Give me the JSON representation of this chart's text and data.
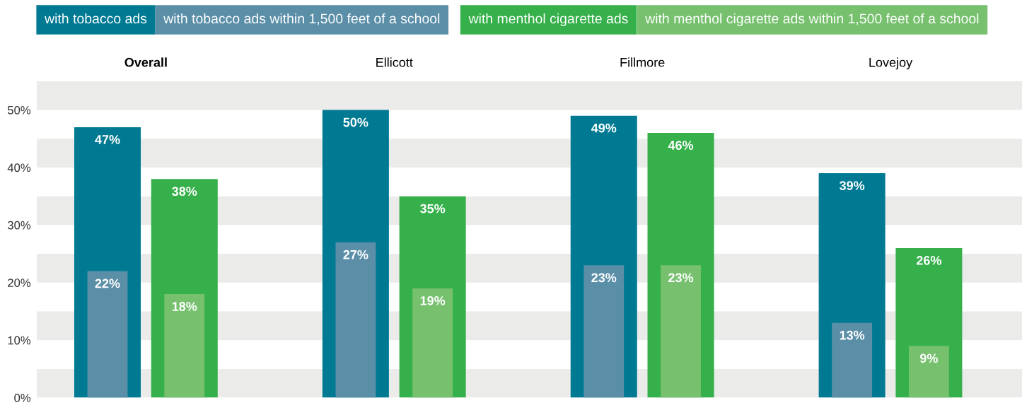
{
  "chart_data": {
    "type": "bar",
    "categories": [
      "Overall",
      "Ellicott",
      "Fillmore",
      "Lovejoy"
    ],
    "series": [
      {
        "name": "with tobacco ads",
        "color": "#007a93",
        "values": [
          47,
          50,
          49,
          39
        ],
        "value_labels": [
          "47%",
          "50%",
          "49%",
          "39%"
        ]
      },
      {
        "name": "with tobacco ads within 1,500 feet of a school",
        "color": "#5b8fa8",
        "values": [
          22,
          27,
          23,
          13
        ],
        "value_labels": [
          "22%",
          "27%",
          "23%",
          "13%"
        ]
      },
      {
        "name": "with menthol cigarette ads",
        "color": "#35b04a",
        "values": [
          38,
          35,
          46,
          26
        ],
        "value_labels": [
          "38%",
          "35%",
          "46%",
          "26%"
        ]
      },
      {
        "name": "with menthol cigarette ads within 1,500 feet of a school",
        "color": "#76c06e",
        "values": [
          18,
          19,
          23,
          9
        ],
        "value_labels": [
          "18%",
          "19%",
          "23%",
          "9%"
        ]
      }
    ],
    "ylim": [
      0,
      55
    ],
    "yticks": [
      {
        "value": 0,
        "label": "0%"
      },
      {
        "value": 10,
        "label": "10%"
      },
      {
        "value": 20,
        "label": "20%"
      },
      {
        "value": 30,
        "label": "30%"
      },
      {
        "value": 40,
        "label": "40%"
      },
      {
        "value": 50,
        "label": "50%"
      }
    ],
    "bands": [
      {
        "axis": "y",
        "from": 0,
        "to": 5,
        "color": "#ebebea"
      },
      {
        "axis": "y",
        "from": 10,
        "to": 15,
        "color": "#ebebea"
      },
      {
        "axis": "y",
        "from": 20,
        "to": 25,
        "color": "#ebebea"
      },
      {
        "axis": "y",
        "from": 30,
        "to": 35,
        "color": "#ebebea"
      },
      {
        "axis": "y",
        "from": 40,
        "to": 45,
        "color": "#ebebea"
      },
      {
        "axis": "y",
        "from": 50,
        "to": 55,
        "color": "#ebebea"
      }
    ],
    "legend": "top",
    "grid": false
  }
}
